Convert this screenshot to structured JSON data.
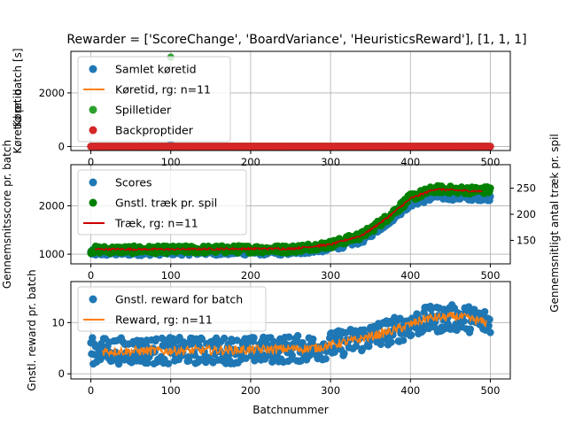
{
  "title": "Rewarder = ['ScoreChange', 'BoardVariance', 'HeuristicsReward'], [1, 1, 1]",
  "xlabel": "Batchnummer",
  "colors": {
    "blue": "#1f77b4",
    "orange": "#ff7f0e",
    "green": "#2ca02c",
    "red": "#d62728",
    "dark_green": "#008000",
    "dark_red": "#cc0000"
  },
  "chart_data": [
    {
      "type": "scatter",
      "ylabel": "Køretid pr. batch [s]",
      "ylabel_overlap": "Køretid",
      "xlim": [
        -25,
        525
      ],
      "ylim": [
        -150,
        3550
      ],
      "xticks": [
        0,
        100,
        200,
        300,
        400,
        500
      ],
      "yticks": [
        0,
        2000
      ],
      "grid": true,
      "legend_position": "upper left",
      "series": [
        {
          "name": "Samlet køretid",
          "kind": "points",
          "color": "#1f77b4",
          "x_range": [
            0,
            500
          ],
          "baseline": 2,
          "spikes": [
            [
              100,
              80
            ]
          ]
        },
        {
          "name": "Køretid, rg: n=11",
          "kind": "line",
          "color": "#ff7f0e",
          "x_range": [
            5,
            495
          ],
          "baseline": 5
        },
        {
          "name": "Spilletider",
          "kind": "points",
          "color": "#2ca02c",
          "x_range": [
            0,
            500
          ],
          "baseline": 1,
          "spikes": [
            [
              100,
              3330
            ]
          ]
        },
        {
          "name": "Backproptider",
          "kind": "points",
          "color": "#d62728",
          "x_range": [
            0,
            500
          ],
          "baseline": 0
        }
      ]
    },
    {
      "type": "scatter",
      "ylabel": "Gennemsnitsscore pr. batch",
      "ylabel_right": "Gennemsnitligt antal træk pr. spil",
      "xlim": [
        -25,
        525
      ],
      "ylim": [
        800,
        2850
      ],
      "y2lim": [
        105,
        295
      ],
      "xticks": [
        0,
        100,
        200,
        300,
        400,
        500
      ],
      "yticks": [
        1000,
        2000
      ],
      "y2ticks": [
        150,
        200,
        250
      ],
      "grid": true,
      "legend_position": "upper left",
      "series": [
        {
          "name": "Scores",
          "kind": "points",
          "color": "#1f77b4",
          "axis": "left",
          "trend": [
            [
              0,
              1030
            ],
            [
              100,
              1050
            ],
            [
              200,
              1050
            ],
            [
              250,
              1050
            ],
            [
              300,
              1130
            ],
            [
              340,
              1300
            ],
            [
              370,
              1650
            ],
            [
              400,
              2050
            ],
            [
              430,
              2200
            ],
            [
              470,
              2180
            ],
            [
              500,
              2180
            ]
          ],
          "noise": 70
        },
        {
          "name": "Gnstl. træk pr. spil",
          "kind": "points",
          "color": "#008000",
          "axis": "right",
          "trend": [
            [
              0,
              132
            ],
            [
              100,
              132
            ],
            [
              200,
              133
            ],
            [
              250,
              133
            ],
            [
              300,
              142
            ],
            [
              340,
              160
            ],
            [
              370,
              192
            ],
            [
              400,
              232
            ],
            [
              430,
              248
            ],
            [
              470,
              246
            ],
            [
              500,
              246
            ]
          ],
          "noise": 7
        },
        {
          "name": "Træk, rg: n=11",
          "kind": "line",
          "color": "#cc0000",
          "axis": "right",
          "trend": [
            [
              5,
              133
            ],
            [
              100,
              133
            ],
            [
              200,
              134
            ],
            [
              250,
              134
            ],
            [
              300,
              142
            ],
            [
              340,
              160
            ],
            [
              370,
              192
            ],
            [
              400,
              230
            ],
            [
              430,
              248
            ],
            [
              470,
              245
            ],
            [
              490,
              244
            ]
          ]
        }
      ]
    },
    {
      "type": "scatter",
      "ylabel": "Gnstl. reward pr. batch",
      "xlim": [
        -25,
        525
      ],
      "ylim": [
        -1,
        18
      ],
      "xticks": [
        0,
        100,
        200,
        300,
        400,
        500
      ],
      "yticks": [
        0,
        10
      ],
      "grid": true,
      "legend_position": "upper left",
      "series": [
        {
          "name": "Gnstl. reward for batch",
          "kind": "points",
          "color": "#1f77b4",
          "trend": [
            [
              0,
              4.5
            ],
            [
              100,
              4.5
            ],
            [
              200,
              4.6
            ],
            [
              280,
              5.0
            ],
            [
              330,
              6.5
            ],
            [
              380,
              8.5
            ],
            [
              420,
              10.5
            ],
            [
              460,
              11.0
            ],
            [
              500,
              10.0
            ]
          ],
          "noise": 2.6
        },
        {
          "name": "Reward, rg: n=11",
          "kind": "line",
          "color": "#ff7f0e",
          "trend": [
            [
              15,
              4.4
            ],
            [
              100,
              4.5
            ],
            [
              200,
              4.7
            ],
            [
              280,
              5.0
            ],
            [
              330,
              6.5
            ],
            [
              380,
              8.5
            ],
            [
              420,
              10.8
            ],
            [
              460,
              11.2
            ],
            [
              495,
              10.0
            ]
          ]
        }
      ]
    }
  ]
}
